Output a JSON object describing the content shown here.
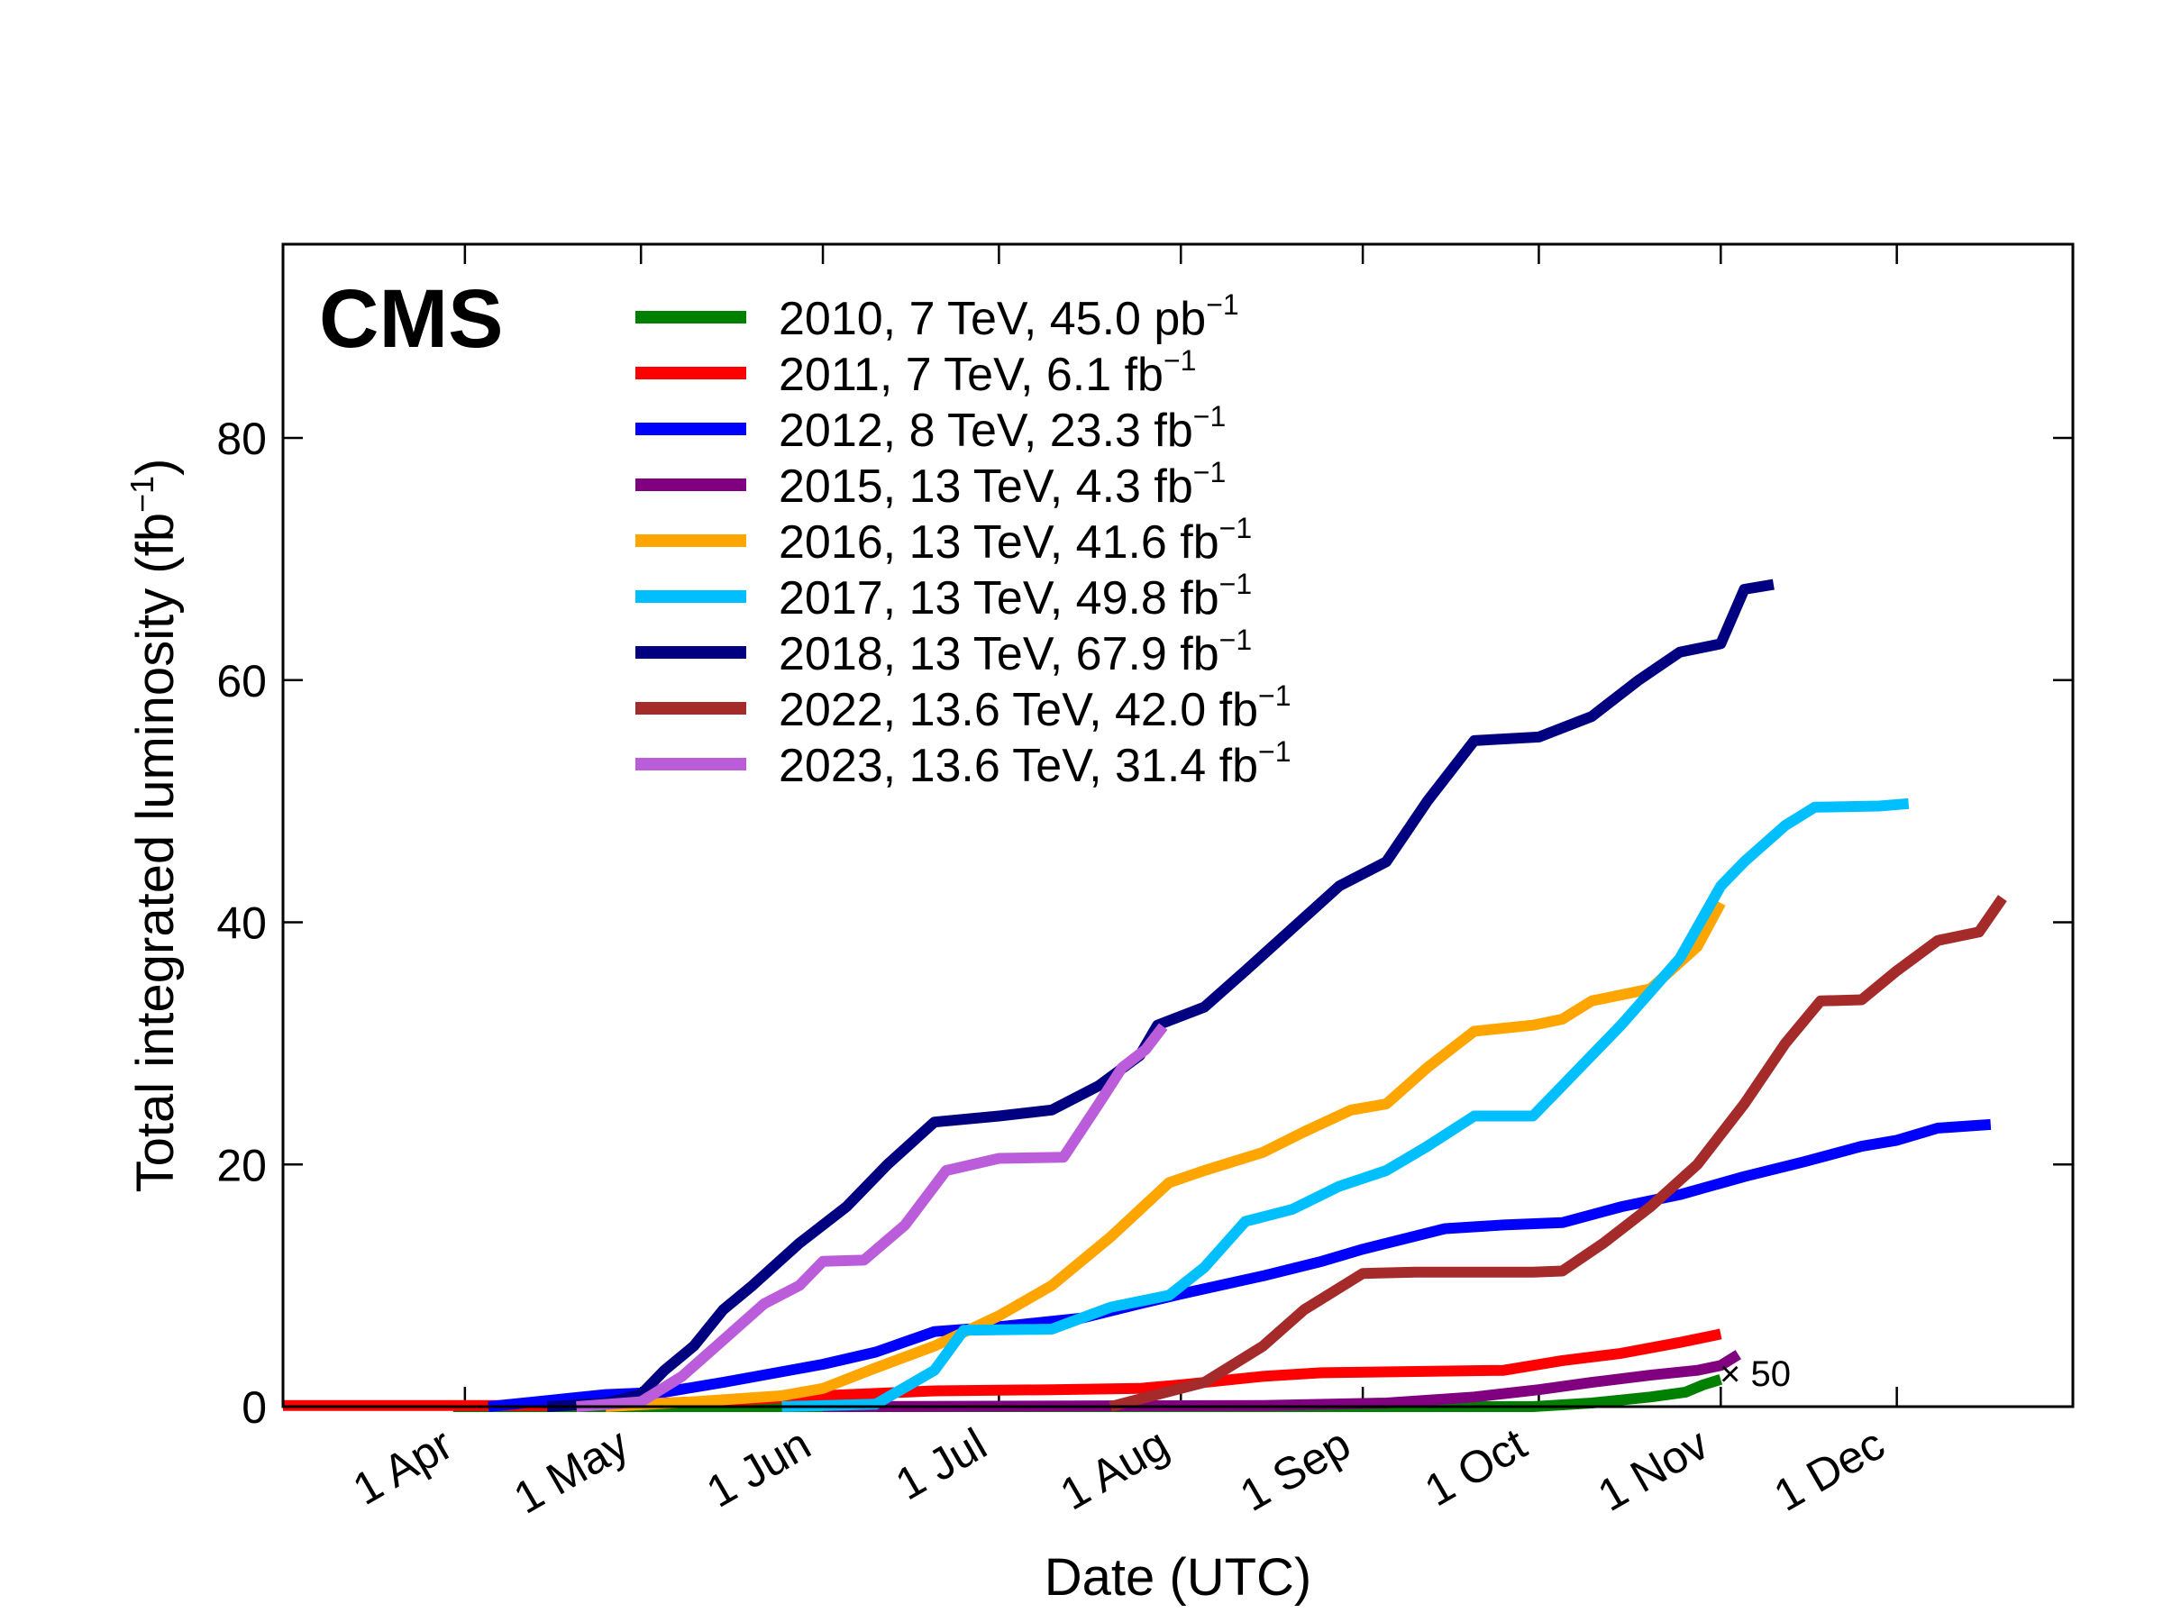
{
  "chart_data": {
    "type": "line",
    "title": "",
    "badge": "CMS",
    "xlabel": "Date (UTC)",
    "ylabel": "Total integrated luminosity (fb",
    "ylabel_sup": "−1",
    "ylabel_close": ")",
    "xlim": [
      "03-01",
      "12-31"
    ],
    "ylim": [
      0,
      96
    ],
    "x_ticks": [
      {
        "date": "04-01",
        "label": "1 Apr"
      },
      {
        "date": "05-01",
        "label": "1 May"
      },
      {
        "date": "06-01",
        "label": "1 Jun"
      },
      {
        "date": "07-01",
        "label": "1 Jul"
      },
      {
        "date": "08-01",
        "label": "1 Aug"
      },
      {
        "date": "09-01",
        "label": "1 Sep"
      },
      {
        "date": "10-01",
        "label": "1 Oct"
      },
      {
        "date": "11-01",
        "label": "1 Nov"
      },
      {
        "date": "12-01",
        "label": "1 Dec"
      }
    ],
    "y_ticks": [
      0,
      20,
      40,
      60,
      80
    ],
    "grid": false,
    "legend_position": "top-center",
    "annotation": "× 50",
    "series": [
      {
        "name": "2010, 7 TeV, 45.0 pb",
        "sup": "−1",
        "color": "#008000",
        "points": [
          [
            "03-30",
            0
          ],
          [
            "07-01",
            0
          ],
          [
            "09-30",
            0
          ],
          [
            "10-10",
            0.3
          ],
          [
            "10-20",
            0.8
          ],
          [
            "10-26",
            1.2
          ],
          [
            "10-29",
            1.8
          ],
          [
            "11-01",
            2.25
          ]
        ]
      },
      {
        "name": "2011, 7 TeV, 6.1 fb",
        "sup": "−1",
        "color": "#ff0000",
        "points": [
          [
            "03-01",
            0.1
          ],
          [
            "04-15",
            0.1
          ],
          [
            "05-01",
            0.2
          ],
          [
            "05-20",
            0.6
          ],
          [
            "06-01",
            0.9
          ],
          [
            "06-20",
            1.3
          ],
          [
            "07-10",
            1.4
          ],
          [
            "07-25",
            1.5
          ],
          [
            "08-01",
            1.8
          ],
          [
            "08-15",
            2.5
          ],
          [
            "08-25",
            2.8
          ],
          [
            "09-10",
            2.9
          ],
          [
            "09-25",
            3.0
          ],
          [
            "10-05",
            3.8
          ],
          [
            "10-15",
            4.4
          ],
          [
            "10-25",
            5.3
          ],
          [
            "11-01",
            6.0
          ]
        ]
      },
      {
        "name": "2012, 8 TeV, 23.3 fb",
        "sup": "−1",
        "color": "#0000ff",
        "points": [
          [
            "04-05",
            0
          ],
          [
            "04-15",
            0.5
          ],
          [
            "04-25",
            1.0
          ],
          [
            "05-05",
            1.2
          ],
          [
            "05-15",
            2.0
          ],
          [
            "06-01",
            3.5
          ],
          [
            "06-10",
            4.5
          ],
          [
            "06-20",
            6.2
          ],
          [
            "07-01",
            6.6
          ],
          [
            "07-15",
            7.3
          ],
          [
            "07-25",
            8.5
          ],
          [
            "08-01",
            9.3
          ],
          [
            "08-15",
            10.8
          ],
          [
            "08-25",
            12.0
          ],
          [
            "09-01",
            13.0
          ],
          [
            "09-15",
            14.7
          ],
          [
            "09-25",
            15.0
          ],
          [
            "10-05",
            15.2
          ],
          [
            "10-15",
            16.5
          ],
          [
            "10-25",
            17.5
          ],
          [
            "11-05",
            19.0
          ],
          [
            "11-15",
            20.2
          ],
          [
            "11-25",
            21.5
          ],
          [
            "12-01",
            22.0
          ],
          [
            "12-08",
            23.0
          ],
          [
            "12-17",
            23.3
          ]
        ]
      },
      {
        "name": "2015, 13 TeV, 4.3 fb",
        "sup": "−1",
        "color": "#800080",
        "points": [
          [
            "06-01",
            0
          ],
          [
            "08-15",
            0.1
          ],
          [
            "09-05",
            0.3
          ],
          [
            "09-20",
            0.8
          ],
          [
            "10-01",
            1.4
          ],
          [
            "10-10",
            2.0
          ],
          [
            "10-20",
            2.6
          ],
          [
            "10-28",
            3.0
          ],
          [
            "11-01",
            3.4
          ],
          [
            "11-04",
            4.3
          ]
        ]
      },
      {
        "name": "2016, 13 TeV, 41.6 fb",
        "sup": "−1",
        "color": "#ffa500",
        "points": [
          [
            "04-25",
            0
          ],
          [
            "05-10",
            0.4
          ],
          [
            "05-25",
            0.9
          ],
          [
            "06-01",
            1.5
          ],
          [
            "06-10",
            3.2
          ],
          [
            "06-20",
            5.0
          ],
          [
            "07-01",
            7.5
          ],
          [
            "07-10",
            10.0
          ],
          [
            "07-20",
            14.0
          ],
          [
            "07-30",
            18.5
          ],
          [
            "08-05",
            19.5
          ],
          [
            "08-15",
            21.0
          ],
          [
            "08-22",
            22.7
          ],
          [
            "08-30",
            24.5
          ],
          [
            "09-05",
            25.0
          ],
          [
            "09-12",
            28.0
          ],
          [
            "09-20",
            31.0
          ],
          [
            "09-30",
            31.5
          ],
          [
            "10-05",
            32.0
          ],
          [
            "10-10",
            33.5
          ],
          [
            "10-20",
            34.5
          ],
          [
            "10-28",
            38.0
          ],
          [
            "11-01",
            41.6
          ]
        ]
      },
      {
        "name": "2017, 13 TeV, 49.8 fb",
        "sup": "−1",
        "color": "#00bfff",
        "points": [
          [
            "05-25",
            0
          ],
          [
            "06-10",
            0.2
          ],
          [
            "06-20",
            3.0
          ],
          [
            "06-25",
            6.3
          ],
          [
            "07-10",
            6.4
          ],
          [
            "07-20",
            8.2
          ],
          [
            "07-30",
            9.2
          ],
          [
            "08-05",
            11.5
          ],
          [
            "08-12",
            15.3
          ],
          [
            "08-20",
            16.3
          ],
          [
            "08-28",
            18.2
          ],
          [
            "09-05",
            19.5
          ],
          [
            "09-12",
            21.5
          ],
          [
            "09-20",
            24.0
          ],
          [
            "09-30",
            24.0
          ],
          [
            "10-05",
            26.5
          ],
          [
            "10-15",
            31.5
          ],
          [
            "10-25",
            37.0
          ],
          [
            "11-01",
            43.0
          ],
          [
            "11-05",
            45.0
          ],
          [
            "11-12",
            48.0
          ],
          [
            "11-17",
            49.5
          ],
          [
            "11-28",
            49.6
          ],
          [
            "12-03",
            49.8
          ]
        ]
      },
      {
        "name": "2018, 13 TeV, 67.9 fb",
        "sup": "−1",
        "color": "#000080",
        "points": [
          [
            "04-15",
            0
          ],
          [
            "04-25",
            0.3
          ],
          [
            "05-01",
            1.0
          ],
          [
            "05-05",
            3.0
          ],
          [
            "05-10",
            5.0
          ],
          [
            "05-15",
            8.0
          ],
          [
            "05-20",
            10.0
          ],
          [
            "05-28",
            13.5
          ],
          [
            "06-05",
            16.5
          ],
          [
            "06-12",
            20.0
          ],
          [
            "06-20",
            23.5
          ],
          [
            "07-01",
            24.0
          ],
          [
            "07-10",
            24.5
          ],
          [
            "07-18",
            26.5
          ],
          [
            "07-25",
            29.0
          ],
          [
            "07-28",
            31.5
          ],
          [
            "08-05",
            33.0
          ],
          [
            "08-12",
            36.0
          ],
          [
            "08-20",
            39.5
          ],
          [
            "08-28",
            43.0
          ],
          [
            "09-05",
            45.0
          ],
          [
            "09-12",
            50.0
          ],
          [
            "09-20",
            55.0
          ],
          [
            "10-01",
            55.3
          ],
          [
            "10-10",
            57.0
          ],
          [
            "10-18",
            60.0
          ],
          [
            "10-25",
            62.3
          ],
          [
            "11-01",
            63.0
          ],
          [
            "11-05",
            67.5
          ],
          [
            "11-10",
            67.9
          ]
        ]
      },
      {
        "name": "2022, 13.6 TeV, 42.0 fb",
        "sup": "−1",
        "color": "#a52a2a",
        "points": [
          [
            "07-20",
            0
          ],
          [
            "08-05",
            2.0
          ],
          [
            "08-15",
            5.0
          ],
          [
            "08-22",
            8.0
          ],
          [
            "09-01",
            11.0
          ],
          [
            "09-10",
            11.1
          ],
          [
            "09-30",
            11.1
          ],
          [
            "10-05",
            11.2
          ],
          [
            "10-12",
            13.5
          ],
          [
            "10-20",
            16.5
          ],
          [
            "10-28",
            20.0
          ],
          [
            "11-05",
            25.0
          ],
          [
            "11-12",
            30.0
          ],
          [
            "11-18",
            33.5
          ],
          [
            "11-25",
            33.6
          ],
          [
            "12-01",
            36.0
          ],
          [
            "12-08",
            38.5
          ],
          [
            "12-15",
            39.2
          ],
          [
            "12-19",
            42.0
          ]
        ]
      },
      {
        "name": "2023, 13.6 TeV, 31.4 fb",
        "sup": "−1",
        "color": "#bb5cdb",
        "points": [
          [
            "04-20",
            0
          ],
          [
            "05-01",
            0.4
          ],
          [
            "05-08",
            2.5
          ],
          [
            "05-15",
            5.5
          ],
          [
            "05-22",
            8.5
          ],
          [
            "05-28",
            10.0
          ],
          [
            "06-01",
            12.0
          ],
          [
            "06-08",
            12.1
          ],
          [
            "06-15",
            15.0
          ],
          [
            "06-22",
            19.5
          ],
          [
            "07-01",
            20.5
          ],
          [
            "07-12",
            20.6
          ],
          [
            "07-18",
            25.0
          ],
          [
            "07-22",
            28.0
          ],
          [
            "07-26",
            29.5
          ],
          [
            "07-29",
            31.4
          ]
        ]
      }
    ]
  }
}
